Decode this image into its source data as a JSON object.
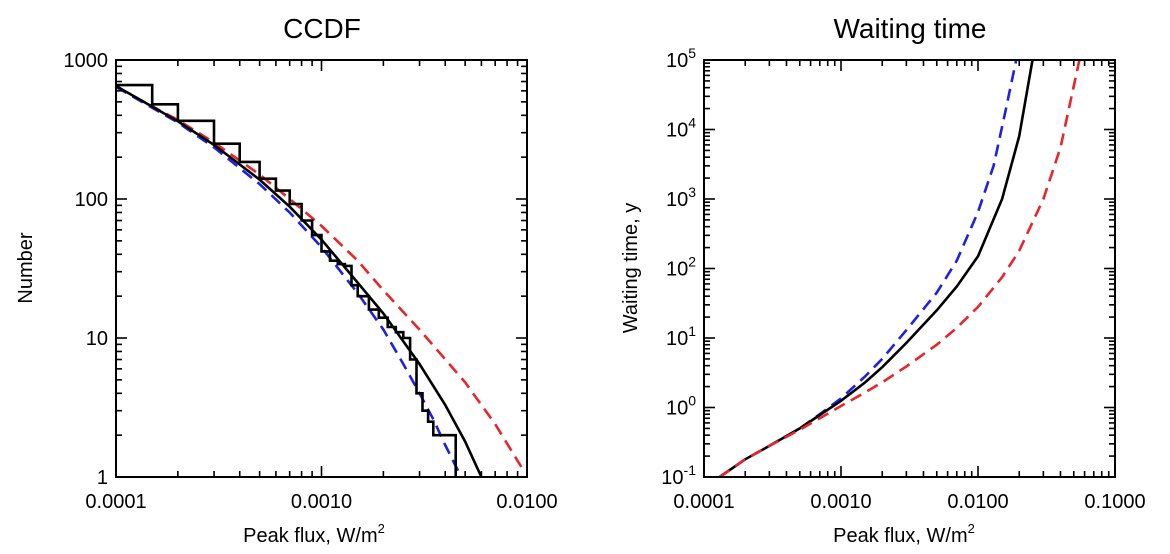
{
  "chart_data": [
    {
      "type": "line",
      "title": "CCDF",
      "xlabel": "Peak flux, W/m",
      "xlabel_sup": "2",
      "ylabel": "Number",
      "xscale": "log",
      "yscale": "log",
      "xlim": [
        0.0001,
        0.01
      ],
      "ylim": [
        1,
        1000
      ],
      "x_ticks": [
        {
          "value": 0.0001,
          "label": "0.0001"
        },
        {
          "value": 0.001,
          "label": "0.0010"
        },
        {
          "value": 0.01,
          "label": "0.0100"
        }
      ],
      "y_ticks": [
        {
          "value": 1,
          "label": "1"
        },
        {
          "value": 10,
          "label": "10"
        },
        {
          "value": 100,
          "label": "100"
        },
        {
          "value": 1000,
          "label": "1000"
        }
      ],
      "series": [
        {
          "name": "red-dashed-fit",
          "color": "#e8252a",
          "style": "dashed",
          "x": [
            0.0001,
            0.0002,
            0.0003,
            0.0005,
            0.0007,
            0.001,
            0.0015,
            0.002,
            0.003,
            0.005,
            0.007,
            0.0095
          ],
          "y": [
            640,
            370,
            255,
            150,
            100,
            64,
            36,
            22,
            11.5,
            4.8,
            2.4,
            1.15
          ]
        },
        {
          "name": "blue-dashed-fit",
          "color": "#2020e0",
          "style": "dashed",
          "x": [
            0.0001,
            0.0002,
            0.0003,
            0.0005,
            0.0007,
            0.001,
            0.0015,
            0.002,
            0.0025,
            0.003,
            0.0035,
            0.004,
            0.0045,
            0.0048
          ],
          "y": [
            640,
            355,
            235,
            128,
            80,
            45,
            21,
            11.5,
            6.5,
            4.0,
            2.6,
            1.7,
            1.2,
            1.0
          ]
        },
        {
          "name": "black-solid-fit",
          "color": "#000000",
          "style": "solid",
          "x": [
            0.0001,
            0.0002,
            0.0003,
            0.0005,
            0.0007,
            0.001,
            0.0015,
            0.002,
            0.003,
            0.004,
            0.005,
            0.006
          ],
          "y": [
            650,
            362,
            245,
            138,
            88,
            51,
            25,
            15,
            6.5,
            3.3,
            1.8,
            1.0
          ]
        },
        {
          "name": "black-step-data",
          "color": "#000000",
          "style": "step",
          "x": [
            0.0001,
            0.00015,
            0.0002,
            0.0003,
            0.0004,
            0.0005,
            0.0006,
            0.0007,
            0.0008,
            0.0009,
            0.001,
            0.0011,
            0.0012,
            0.0013,
            0.0014,
            0.0015,
            0.0017,
            0.0019,
            0.0021,
            0.0023,
            0.0025,
            0.0027,
            0.0029,
            0.0031,
            0.0033,
            0.0035,
            0.004,
            0.0045
          ],
          "y": [
            660,
            480,
            365,
            250,
            185,
            140,
            115,
            92,
            70,
            55,
            42,
            36,
            34,
            33,
            24,
            20,
            16,
            14,
            12,
            11,
            10,
            7,
            4,
            3,
            2.5,
            2,
            2,
            1
          ]
        }
      ]
    },
    {
      "type": "line",
      "title": "Waiting time",
      "xlabel": "Peak flux, W/m",
      "xlabel_sup": "2",
      "ylabel": "Waiting time, y",
      "xscale": "log",
      "yscale": "log",
      "xlim": [
        0.0001,
        0.1
      ],
      "ylim": [
        0.1,
        100000
      ],
      "x_ticks": [
        {
          "value": 0.0001,
          "label": "0.0001"
        },
        {
          "value": 0.001,
          "label": "0.0010"
        },
        {
          "value": 0.01,
          "label": "0.0100"
        },
        {
          "value": 0.1,
          "label": "0.1000"
        }
      ],
      "y_ticks": [
        {
          "value": 0.1,
          "base": "10",
          "exp": "-1"
        },
        {
          "value": 1,
          "base": "10",
          "exp": "0"
        },
        {
          "value": 10,
          "base": "10",
          "exp": "1"
        },
        {
          "value": 100,
          "base": "10",
          "exp": "2"
        },
        {
          "value": 1000,
          "base": "10",
          "exp": "3"
        },
        {
          "value": 10000,
          "base": "10",
          "exp": "4"
        },
        {
          "value": 100000,
          "base": "10",
          "exp": "5"
        }
      ],
      "series": [
        {
          "name": "blue-dashed-fit",
          "color": "#2020e0",
          "style": "dashed",
          "x": [
            0.00013,
            0.0002,
            0.0003,
            0.0005,
            0.0007,
            0.001,
            0.0015,
            0.002,
            0.003,
            0.005,
            0.007,
            0.01,
            0.013,
            0.016,
            0.019
          ],
          "y": [
            0.1,
            0.18,
            0.28,
            0.5,
            0.8,
            1.35,
            2.8,
            5,
            13,
            45,
            130,
            650,
            3000,
            20000,
            100000
          ]
        },
        {
          "name": "black-solid-fit",
          "color": "#000000",
          "style": "solid",
          "x": [
            0.00013,
            0.0002,
            0.0003,
            0.0005,
            0.0007,
            0.001,
            0.0015,
            0.002,
            0.003,
            0.005,
            0.007,
            0.01,
            0.015,
            0.02,
            0.025
          ],
          "y": [
            0.1,
            0.18,
            0.28,
            0.5,
            0.78,
            1.25,
            2.3,
            3.8,
            8.5,
            25,
            55,
            150,
            1000,
            8000,
            100000
          ]
        },
        {
          "name": "red-dashed-fit",
          "color": "#e8252a",
          "style": "dashed",
          "x": [
            0.00013,
            0.0002,
            0.0003,
            0.0005,
            0.0007,
            0.001,
            0.0015,
            0.002,
            0.003,
            0.005,
            0.007,
            0.01,
            0.015,
            0.02,
            0.03,
            0.04,
            0.055
          ],
          "y": [
            0.1,
            0.18,
            0.28,
            0.48,
            0.7,
            1.05,
            1.65,
            2.3,
            3.9,
            8,
            14,
            28,
            75,
            180,
            1000,
            5500,
            100000
          ]
        }
      ]
    }
  ]
}
